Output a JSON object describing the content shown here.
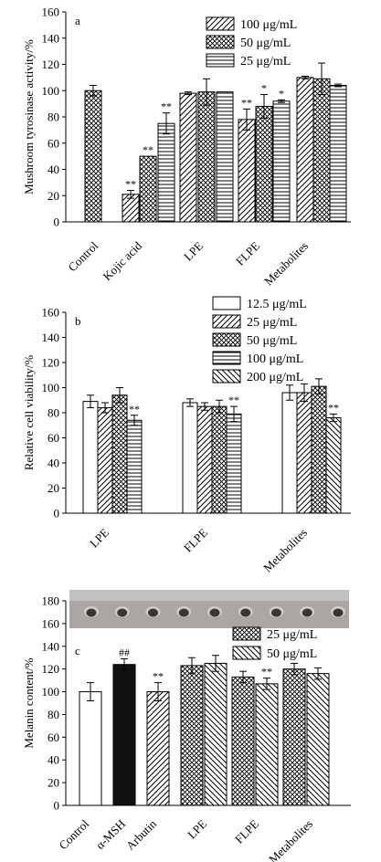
{
  "figure": {
    "photo": {
      "spots": 9
    }
  },
  "chart_data": [
    {
      "panel": "a",
      "type": "bar",
      "ylabel": "Mushroom tyrosinase activity/%",
      "ylim": [
        0,
        160
      ],
      "yticks": [
        0,
        20,
        40,
        60,
        80,
        100,
        120,
        140,
        160
      ],
      "categories": [
        "Control",
        "Kojic acid",
        "LPE",
        "FLPE",
        "Metabolites"
      ],
      "legend_position": "top-right",
      "series": [
        {
          "name": "",
          "pattern": "cross",
          "values": [
            100,
            null,
            null,
            null,
            null
          ],
          "errors": [
            4,
            null,
            null,
            null,
            null
          ],
          "marks": [
            "",
            "",
            "",
            "",
            ""
          ]
        },
        {
          "name": "100 μg/mL",
          "pattern": "diag",
          "values": [
            null,
            21,
            98,
            78,
            110
          ],
          "errors": [
            null,
            3,
            1,
            8,
            1
          ],
          "marks": [
            "",
            "**",
            "",
            "**",
            ""
          ]
        },
        {
          "name": "50 μg/mL",
          "pattern": "cross",
          "values": [
            null,
            50,
            99,
            88,
            109
          ],
          "errors": [
            null,
            0,
            10,
            9,
            12
          ],
          "marks": [
            "",
            "**",
            "",
            "*",
            ""
          ]
        },
        {
          "name": "25 μg/mL",
          "pattern": "hlines",
          "values": [
            null,
            75,
            99,
            92,
            104
          ],
          "errors": [
            null,
            8,
            0,
            1,
            1
          ],
          "marks": [
            "",
            "**",
            "",
            "*",
            ""
          ]
        }
      ]
    },
    {
      "panel": "b",
      "type": "bar",
      "ylabel": "Relative cell viability/%",
      "ylim": [
        0,
        160
      ],
      "yticks": [
        0,
        20,
        40,
        60,
        80,
        100,
        120,
        140,
        160
      ],
      "categories": [
        "LPE",
        "FLPE",
        "Metabolites"
      ],
      "legend_position": "top-right",
      "series": [
        {
          "name": "12.5 μg/mL",
          "pattern": "white",
          "values": [
            89,
            88,
            96
          ],
          "errors": [
            5,
            3,
            6
          ],
          "marks": [
            "",
            "",
            ""
          ]
        },
        {
          "name": "25 μg/mL",
          "pattern": "diag",
          "values": [
            84,
            85,
            96
          ],
          "errors": [
            4,
            3,
            7
          ],
          "marks": [
            "",
            "",
            ""
          ]
        },
        {
          "name": "50 μg/mL",
          "pattern": "cross",
          "values": [
            94,
            85,
            101
          ],
          "errors": [
            6,
            5,
            6
          ],
          "marks": [
            "",
            "",
            ""
          ]
        },
        {
          "name": "100 μg/mL",
          "pattern": "hlines",
          "values": [
            74,
            79,
            null
          ],
          "errors": [
            4,
            6,
            null
          ],
          "marks": [
            "**",
            "**",
            ""
          ]
        },
        {
          "name": "200 μg/mL",
          "pattern": "diagrev",
          "values": [
            null,
            null,
            76
          ],
          "errors": [
            null,
            null,
            3
          ],
          "marks": [
            "",
            "",
            "**"
          ]
        }
      ]
    },
    {
      "panel": "c",
      "type": "bar",
      "ylabel": "Melanin content/%",
      "ylim": [
        0,
        180
      ],
      "yticks": [
        0,
        20,
        40,
        60,
        80,
        100,
        120,
        140,
        160,
        180
      ],
      "categories": [
        "Control",
        "α-MSH",
        "Arbutin",
        "LPE",
        "FLPE",
        "Metabolites"
      ],
      "legend_position": "top-right",
      "series": [
        {
          "name": "",
          "pattern": "white",
          "values": [
            100,
            null,
            null,
            null,
            null,
            null
          ],
          "errors": [
            8,
            null,
            null,
            null,
            null,
            null
          ],
          "marks": [
            "",
            "",
            "",
            "",
            "",
            ""
          ]
        },
        {
          "name": "",
          "pattern": "black",
          "values": [
            null,
            124,
            null,
            null,
            null,
            null
          ],
          "errors": [
            null,
            5,
            null,
            null,
            null,
            null
          ],
          "marks": [
            "",
            "##",
            "",
            "",
            "",
            ""
          ]
        },
        {
          "name": "",
          "pattern": "diag",
          "values": [
            null,
            null,
            100,
            null,
            null,
            null
          ],
          "errors": [
            null,
            null,
            8,
            null,
            null,
            null
          ],
          "marks": [
            "",
            "",
            "**",
            "",
            "",
            ""
          ]
        },
        {
          "name": "25 μg/mL",
          "pattern": "cross",
          "values": [
            null,
            null,
            null,
            123,
            113,
            120
          ],
          "errors": [
            null,
            null,
            null,
            7,
            5,
            5
          ],
          "marks": [
            "",
            "",
            "",
            "",
            "",
            ""
          ]
        },
        {
          "name": "50 μg/mL",
          "pattern": "diagrev",
          "values": [
            null,
            null,
            null,
            125,
            107,
            116
          ],
          "errors": [
            null,
            null,
            null,
            7,
            5,
            5
          ],
          "marks": [
            "",
            "",
            "",
            "",
            "**",
            ""
          ]
        }
      ]
    }
  ]
}
